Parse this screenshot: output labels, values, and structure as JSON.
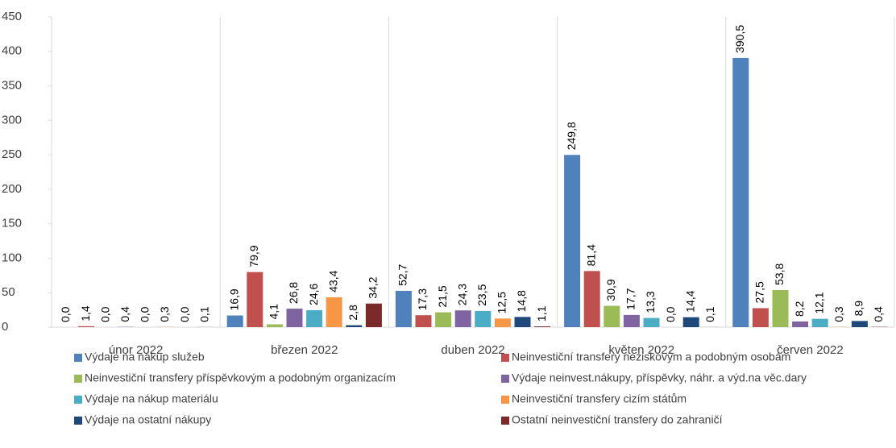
{
  "chart_data": {
    "type": "bar",
    "categories": [
      "únor 2022",
      "březen 2022",
      "duben 2022",
      "květen 2022",
      "červen 2022"
    ],
    "ylim": [
      0,
      450
    ],
    "yticks": [
      0,
      50,
      100,
      150,
      200,
      250,
      300,
      350,
      400,
      450
    ],
    "legend": "bottom",
    "series": [
      {
        "name": "Výdaje na nákup služeb",
        "color": "#4f81bd",
        "values": [
          0.0,
          16.9,
          52.7,
          249.8,
          390.5
        ],
        "value_labels": [
          "0,0",
          "16,9",
          "52,7",
          "249,8",
          "390,5"
        ]
      },
      {
        "name": "Neinvestiční transfery neziskovým a podobným osobám",
        "color": "#c0504d",
        "values": [
          1.4,
          79.9,
          17.3,
          81.4,
          27.5
        ],
        "value_labels": [
          "1,4",
          "79,9",
          "17,3",
          "81,4",
          "27,5"
        ]
      },
      {
        "name": "Neinvestiční transfery příspěvkovým a podobným organizacím",
        "color": "#9bbb59",
        "values": [
          0.0,
          4.1,
          21.5,
          30.9,
          53.8
        ],
        "value_labels": [
          "0,0",
          "4,1",
          "21,5",
          "30,9",
          "53,8"
        ]
      },
      {
        "name": "Výdaje neinvest.nákupy, příspěvky, náhr. a výd.na věc.dary",
        "color": "#8064a2",
        "values": [
          0.4,
          26.8,
          24.3,
          17.7,
          8.2
        ],
        "value_labels": [
          "0,4",
          "26,8",
          "24,3",
          "17,7",
          "8,2"
        ]
      },
      {
        "name": "Výdaje na nákup materiálu",
        "color": "#4bacc6",
        "values": [
          0.0,
          24.6,
          23.5,
          13.3,
          12.1
        ],
        "value_labels": [
          "0,0",
          "24,6",
          "23,5",
          "13,3",
          "12,1"
        ]
      },
      {
        "name": "Neinvestiční transfery cizím státům",
        "color": "#f79646",
        "values": [
          0.3,
          43.4,
          12.5,
          0.0,
          0.3
        ],
        "value_labels": [
          "0,3",
          "43,4",
          "12,5",
          "0,0",
          "0,3"
        ]
      },
      {
        "name": "Výdaje na ostatní nákupy",
        "color": "#1f497d",
        "values": [
          0.0,
          2.8,
          14.8,
          14.4,
          8.9
        ],
        "value_labels": [
          "0,0",
          "2,8",
          "14,8",
          "14,4",
          "8,9"
        ]
      },
      {
        "name": "Ostatní neinvestiční transfery do zahraničí",
        "color": "#7b2a2a",
        "values": [
          0.1,
          34.2,
          1.1,
          0.1,
          0.4
        ],
        "value_labels": [
          "0,1",
          "34,2",
          "1,1",
          "0,1",
          "0,4"
        ]
      }
    ]
  }
}
